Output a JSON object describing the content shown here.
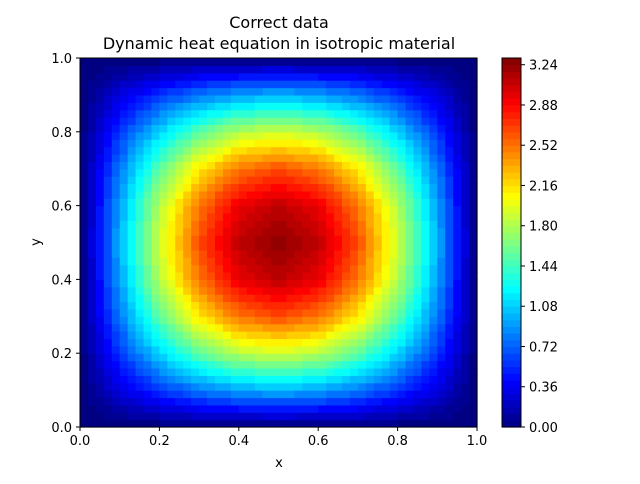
{
  "chart_data": {
    "type": "heatmap",
    "title": "Correct data",
    "subtitle": "Dynamic heat equation in isotropic material",
    "xlabel": "x",
    "ylabel": "y",
    "xlim": [
      0,
      1
    ],
    "ylim": [
      0,
      1
    ],
    "xticks": [
      "0.0",
      "0.2",
      "0.4",
      "0.6",
      "0.8",
      "1.0"
    ],
    "yticks": [
      "0.0",
      "0.2",
      "0.4",
      "0.6",
      "0.8",
      "1.0"
    ],
    "colormap": "jet",
    "zlim": [
      0,
      3.3
    ],
    "colorbar_ticks": [
      "0.00",
      "0.36",
      "0.72",
      "1.08",
      "1.44",
      "1.80",
      "2.16",
      "2.52",
      "2.88",
      "3.24"
    ],
    "grid_x": [
      0,
      0.1,
      0.2,
      0.3,
      0.4,
      0.5,
      0.6,
      0.7,
      0.8,
      0.9,
      1.0
    ],
    "grid_y": [
      0,
      0.1,
      0.2,
      0.3,
      0.4,
      0.5,
      0.6,
      0.7,
      0.8,
      0.9,
      1.0
    ],
    "z": [
      [
        0,
        0,
        0,
        0,
        0,
        0,
        0,
        0,
        0,
        0,
        0
      ],
      [
        0,
        0.32,
        0.6,
        0.83,
        0.97,
        1.02,
        0.97,
        0.83,
        0.6,
        0.32,
        0
      ],
      [
        0,
        0.6,
        1.14,
        1.57,
        1.85,
        1.94,
        1.85,
        1.57,
        1.14,
        0.6,
        0
      ],
      [
        0,
        0.83,
        1.57,
        2.16,
        2.54,
        2.67,
        2.54,
        2.16,
        1.57,
        0.83,
        0
      ],
      [
        0,
        0.97,
        1.85,
        2.54,
        2.99,
        3.14,
        2.99,
        2.54,
        1.85,
        0.97,
        0
      ],
      [
        0,
        1.02,
        1.94,
        2.67,
        3.14,
        3.3,
        3.14,
        2.67,
        1.94,
        1.02,
        0
      ],
      [
        0,
        0.97,
        1.85,
        2.54,
        2.99,
        3.14,
        2.99,
        2.54,
        1.85,
        0.97,
        0
      ],
      [
        0,
        0.83,
        1.57,
        2.16,
        2.54,
        2.67,
        2.54,
        2.16,
        1.57,
        0.83,
        0
      ],
      [
        0,
        0.6,
        1.14,
        1.57,
        1.85,
        1.94,
        1.85,
        1.57,
        1.14,
        0.6,
        0
      ],
      [
        0,
        0.32,
        0.6,
        0.83,
        0.97,
        1.02,
        0.97,
        0.83,
        0.6,
        0.32,
        0
      ],
      [
        0,
        0,
        0,
        0,
        0,
        0,
        0,
        0,
        0,
        0,
        0
      ]
    ]
  }
}
